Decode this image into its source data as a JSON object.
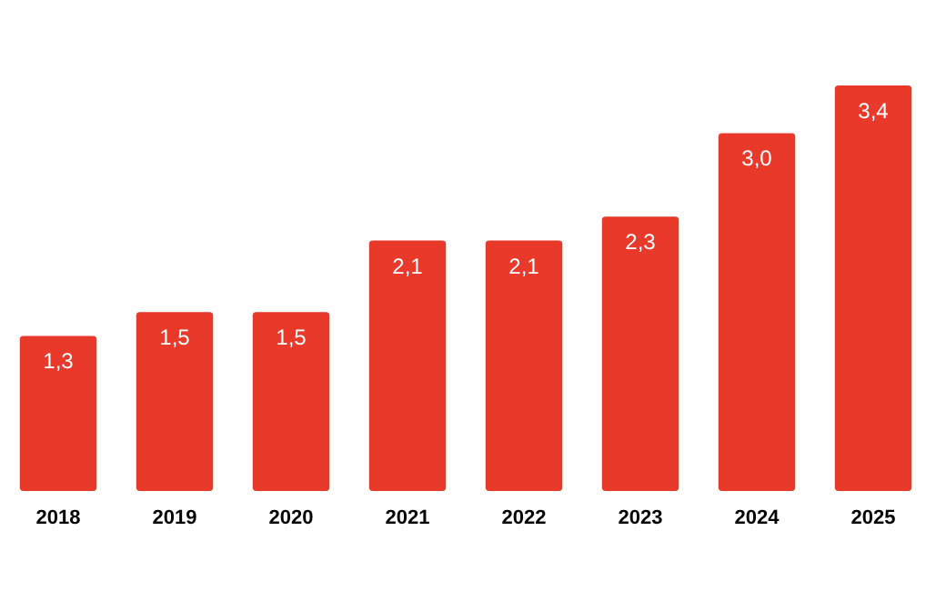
{
  "chart_data": {
    "type": "bar",
    "categories": [
      "2018",
      "2019",
      "2020",
      "2021",
      "2022",
      "2023",
      "2024",
      "2025"
    ],
    "values": [
      1.3,
      1.5,
      1.5,
      2.1,
      2.1,
      2.3,
      3.0,
      3.4
    ],
    "value_labels": [
      "1,3",
      "1,5",
      "1,5",
      "2,1",
      "2,1",
      "2,3",
      "3,0",
      "3,4"
    ],
    "color": "#e8392a"
  }
}
